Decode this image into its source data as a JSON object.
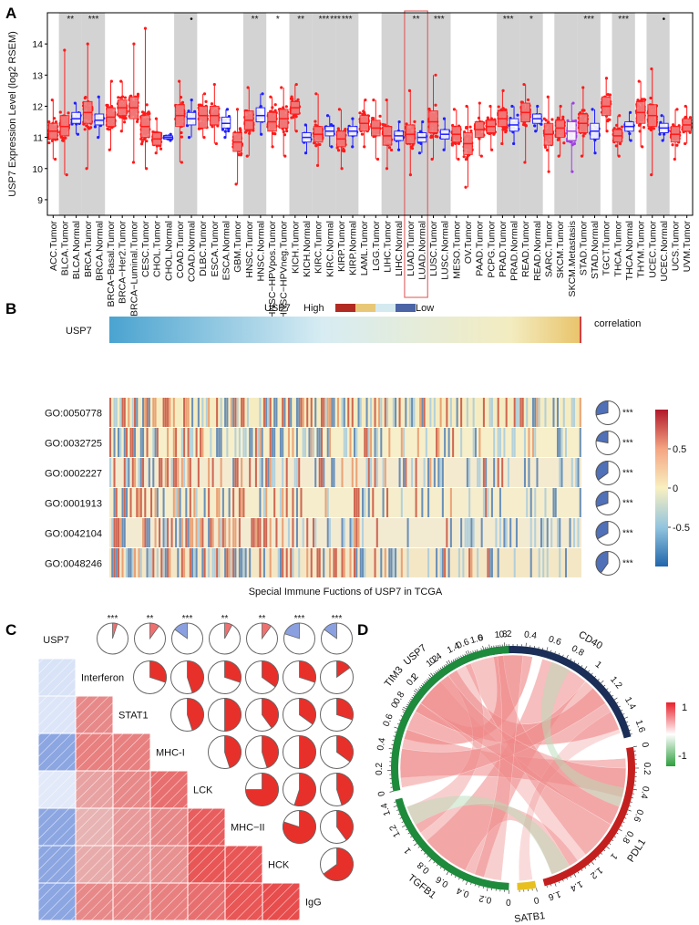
{
  "panel_labels": {
    "a": "A",
    "b": "B",
    "c": "C",
    "d": "D"
  },
  "colors": {
    "tumor": "#ff1a1a",
    "tumor_box": "#f08080",
    "normal": "#1f1fff",
    "metastasis": "#a040e0",
    "high_bar": [
      "#b22b22",
      "#e8c877",
      "#d5eaf0",
      "#4b64a6"
    ],
    "grey_band": "#d3d3d3"
  },
  "chart_data": [
    {
      "type": "box",
      "panel": "A",
      "ylabel": "USP7 Expression Level (log2 RSEM)",
      "ylim": [
        8.5,
        15
      ],
      "yticks": [
        9,
        10,
        11,
        12,
        13,
        14
      ],
      "categories": [
        {
          "label": "ACC.Tumor",
          "median": 11.2,
          "q1": 10.95,
          "q3": 11.45,
          "lo": 10.3,
          "hi": 12.2,
          "group": "tumor",
          "sig": ""
        },
        {
          "label": "BLCA.Tumor",
          "median": 11.35,
          "q1": 11.05,
          "q3": 11.7,
          "lo": 9.8,
          "hi": 13.8,
          "group": "tumor",
          "sig": "**"
        },
        {
          "label": "BLCA.Normal",
          "median": 11.6,
          "q1": 11.45,
          "q3": 11.8,
          "lo": 11.1,
          "hi": 12.1,
          "group": "normal",
          "sig": ""
        },
        {
          "label": "BRCA.Tumor",
          "median": 11.8,
          "q1": 11.45,
          "q3": 12.15,
          "lo": 10.0,
          "hi": 14.0,
          "group": "tumor",
          "sig": "***"
        },
        {
          "label": "BRCA.Normal",
          "median": 11.55,
          "q1": 11.4,
          "q3": 11.75,
          "lo": 11.0,
          "hi": 12.3,
          "group": "normal",
          "sig": ""
        },
        {
          "label": "BRCA−Basal.Tumor",
          "median": 11.65,
          "q1": 11.35,
          "q3": 11.95,
          "lo": 10.6,
          "hi": 12.8,
          "group": "tumor",
          "sig": ""
        },
        {
          "label": "BRCA−Her2.Tumor",
          "median": 11.95,
          "q1": 11.7,
          "q3": 12.2,
          "lo": 11.2,
          "hi": 12.8,
          "group": "tumor",
          "sig": ""
        },
        {
          "label": "BRCA−Luminal.Tumor",
          "median": 11.95,
          "q1": 11.6,
          "q3": 12.3,
          "lo": 10.2,
          "hi": 14.0,
          "group": "tumor",
          "sig": ""
        },
        {
          "label": "CESC.Tumor",
          "median": 11.35,
          "q1": 11.0,
          "q3": 11.7,
          "lo": 10.0,
          "hi": 14.5,
          "group": "tumor",
          "sig": ""
        },
        {
          "label": "CHOL.Tumor",
          "median": 10.95,
          "q1": 10.75,
          "q3": 11.15,
          "lo": 10.5,
          "hi": 11.6,
          "group": "tumor",
          "sig": ""
        },
        {
          "label": "CHOL.Normal",
          "median": 11.0,
          "q1": 10.95,
          "q3": 11.05,
          "lo": 10.9,
          "hi": 11.1,
          "group": "normal",
          "sig": ""
        },
        {
          "label": "COAD.Tumor",
          "median": 11.7,
          "q1": 11.35,
          "q3": 12.05,
          "lo": 10.2,
          "hi": 12.8,
          "group": "tumor",
          "sig": ""
        },
        {
          "label": "COAD.Normal",
          "median": 11.6,
          "q1": 11.4,
          "q3": 11.8,
          "lo": 11.0,
          "hi": 12.2,
          "group": "normal",
          "sig": "•"
        },
        {
          "label": "DLBC.Tumor",
          "median": 11.7,
          "q1": 11.3,
          "q3": 12.0,
          "lo": 11.0,
          "hi": 12.4,
          "group": "tumor",
          "sig": ""
        },
        {
          "label": "ESCA.Tumor",
          "median": 11.7,
          "q1": 11.4,
          "q3": 12.0,
          "lo": 10.8,
          "hi": 12.7,
          "group": "tumor",
          "sig": ""
        },
        {
          "label": "ESCA.Normal",
          "median": 11.45,
          "q1": 11.3,
          "q3": 11.65,
          "lo": 11.0,
          "hi": 11.9,
          "group": "normal",
          "sig": ""
        },
        {
          "label": "GBM.Tumor",
          "median": 10.85,
          "q1": 10.55,
          "q3": 11.15,
          "lo": 9.5,
          "hi": 11.9,
          "group": "tumor",
          "sig": ""
        },
        {
          "label": "HNSC.Tumor",
          "median": 11.55,
          "q1": 11.25,
          "q3": 11.85,
          "lo": 10.4,
          "hi": 12.6,
          "group": "tumor",
          "sig": "**"
        },
        {
          "label": "HNSC.Normal",
          "median": 11.7,
          "q1": 11.5,
          "q3": 11.95,
          "lo": 11.1,
          "hi": 12.4,
          "group": "normal",
          "sig": ""
        },
        {
          "label": "HNSC−HPVpos.Tumor",
          "median": 11.5,
          "q1": 11.2,
          "q3": 11.8,
          "lo": 10.7,
          "hi": 12.3,
          "group": "tumor",
          "sig": "*"
        },
        {
          "label": "HNSC−HPVneg.Tumor",
          "median": 11.6,
          "q1": 11.3,
          "q3": 11.9,
          "lo": 10.4,
          "hi": 12.6,
          "group": "tumor",
          "sig": ""
        },
        {
          "label": "KICH.Tumor",
          "median": 11.95,
          "q1": 11.75,
          "q3": 12.15,
          "lo": 11.2,
          "hi": 12.7,
          "group": "tumor",
          "sig": "**"
        },
        {
          "label": "KICH.Normal",
          "median": 11.0,
          "q1": 10.85,
          "q3": 11.15,
          "lo": 10.5,
          "hi": 11.4,
          "group": "normal",
          "sig": ""
        },
        {
          "label": "KIRC.Tumor",
          "median": 11.1,
          "q1": 10.85,
          "q3": 11.35,
          "lo": 10.1,
          "hi": 12.4,
          "group": "tumor",
          "sig": "***"
        },
        {
          "label": "KIRC.Normal",
          "median": 11.2,
          "q1": 11.05,
          "q3": 11.35,
          "lo": 10.7,
          "hi": 11.7,
          "group": "normal",
          "sig": "***"
        },
        {
          "label": "KIRP.Tumor",
          "median": 10.95,
          "q1": 10.7,
          "q3": 11.2,
          "lo": 10.0,
          "hi": 11.9,
          "group": "tumor",
          "sig": "***"
        },
        {
          "label": "KIRP.Normal",
          "median": 11.2,
          "q1": 11.05,
          "q3": 11.35,
          "lo": 10.7,
          "hi": 11.6,
          "group": "normal",
          "sig": ""
        },
        {
          "label": "LAML.Tumor",
          "median": 11.45,
          "q1": 11.2,
          "q3": 11.7,
          "lo": 10.7,
          "hi": 12.2,
          "group": "tumor",
          "sig": ""
        },
        {
          "label": "LGG.Tumor",
          "median": 11.3,
          "q1": 11.05,
          "q3": 11.55,
          "lo": 10.3,
          "hi": 12.2,
          "group": "tumor",
          "sig": ""
        },
        {
          "label": "LIHC.Tumor",
          "median": 11.05,
          "q1": 10.75,
          "q3": 11.35,
          "lo": 10.0,
          "hi": 12.2,
          "group": "tumor",
          "sig": ""
        },
        {
          "label": "LIHC.Normal",
          "median": 11.05,
          "q1": 10.9,
          "q3": 11.2,
          "lo": 10.6,
          "hi": 11.5,
          "group": "normal",
          "sig": ""
        },
        {
          "label": "LUAD.Tumor",
          "median": 11.1,
          "q1": 10.8,
          "q3": 11.4,
          "lo": 9.8,
          "hi": 12.5,
          "group": "tumor",
          "sig": "**"
        },
        {
          "label": "LUAD.Normal",
          "median": 11.0,
          "q1": 10.85,
          "q3": 11.15,
          "lo": 10.5,
          "hi": 11.5,
          "group": "normal",
          "sig": ""
        },
        {
          "label": "LUSC.Tumor",
          "median": 11.5,
          "q1": 11.15,
          "q3": 11.85,
          "lo": 10.3,
          "hi": 13.0,
          "group": "tumor",
          "sig": "***"
        },
        {
          "label": "LUSC.Normal",
          "median": 11.1,
          "q1": 10.95,
          "q3": 11.25,
          "lo": 10.6,
          "hi": 11.6,
          "group": "normal",
          "sig": ""
        },
        {
          "label": "MESO.Tumor",
          "median": 11.1,
          "q1": 10.85,
          "q3": 11.35,
          "lo": 10.3,
          "hi": 11.9,
          "group": "tumor",
          "sig": ""
        },
        {
          "label": "OV.Tumor",
          "median": 10.8,
          "q1": 10.45,
          "q3": 11.15,
          "lo": 9.4,
          "hi": 12.0,
          "group": "tumor",
          "sig": ""
        },
        {
          "label": "PAAD.Tumor",
          "median": 11.25,
          "q1": 11.0,
          "q3": 11.5,
          "lo": 10.4,
          "hi": 12.1,
          "group": "tumor",
          "sig": ""
        },
        {
          "label": "PCPG.Tumor",
          "median": 11.35,
          "q1": 11.15,
          "q3": 11.55,
          "lo": 10.6,
          "hi": 12.0,
          "group": "tumor",
          "sig": ""
        },
        {
          "label": "PRAD.Tumor",
          "median": 11.6,
          "q1": 11.35,
          "q3": 11.85,
          "lo": 10.8,
          "hi": 12.5,
          "group": "tumor",
          "sig": "***"
        },
        {
          "label": "PRAD.Normal",
          "median": 11.4,
          "q1": 11.2,
          "q3": 11.6,
          "lo": 10.8,
          "hi": 12.0,
          "group": "normal",
          "sig": ""
        },
        {
          "label": "READ.Tumor",
          "median": 11.8,
          "q1": 11.5,
          "q3": 12.1,
          "lo": 10.2,
          "hi": 12.7,
          "group": "tumor",
          "sig": "*"
        },
        {
          "label": "READ.Normal",
          "median": 11.6,
          "q1": 11.45,
          "q3": 11.75,
          "lo": 11.2,
          "hi": 12.0,
          "group": "normal",
          "sig": ""
        },
        {
          "label": "SARC.Tumor",
          "median": 11.1,
          "q1": 10.75,
          "q3": 11.45,
          "lo": 9.9,
          "hi": 12.3,
          "group": "tumor",
          "sig": ""
        },
        {
          "label": "SKCM.Tumor",
          "median": 11.3,
          "q1": 11.0,
          "q3": 11.55,
          "lo": 10.4,
          "hi": 12.0,
          "group": "tumor",
          "sig": ""
        },
        {
          "label": "SKCM.Metastasis",
          "median": 11.2,
          "q1": 10.9,
          "q3": 11.5,
          "lo": 9.9,
          "hi": 12.1,
          "group": "metastasis",
          "sig": ""
        },
        {
          "label": "STAD.Tumor",
          "median": 11.45,
          "q1": 11.15,
          "q3": 11.75,
          "lo": 10.4,
          "hi": 12.6,
          "group": "tumor",
          "sig": "***"
        },
        {
          "label": "STAD.Normal",
          "median": 11.2,
          "q1": 10.95,
          "q3": 11.45,
          "lo": 10.5,
          "hi": 11.9,
          "group": "normal",
          "sig": ""
        },
        {
          "label": "TGCT.Tumor",
          "median": 12.0,
          "q1": 11.7,
          "q3": 12.3,
          "lo": 11.2,
          "hi": 12.9,
          "group": "tumor",
          "sig": ""
        },
        {
          "label": "THCA.Tumor",
          "median": 11.05,
          "q1": 10.85,
          "q3": 11.25,
          "lo": 10.4,
          "hi": 11.7,
          "group": "tumor",
          "sig": "***"
        },
        {
          "label": "THCA.Normal",
          "median": 11.35,
          "q1": 11.2,
          "q3": 11.5,
          "lo": 10.9,
          "hi": 11.8,
          "group": "normal",
          "sig": ""
        },
        {
          "label": "THYM.Tumor",
          "median": 11.8,
          "q1": 11.45,
          "q3": 12.15,
          "lo": 10.7,
          "hi": 12.8,
          "group": "tumor",
          "sig": ""
        },
        {
          "label": "UCEC.Tumor",
          "median": 11.7,
          "q1": 11.35,
          "q3": 12.05,
          "lo": 9.8,
          "hi": 13.2,
          "group": "tumor",
          "sig": ""
        },
        {
          "label": "UCEC.Normal",
          "median": 11.3,
          "q1": 11.15,
          "q3": 11.45,
          "lo": 10.9,
          "hi": 11.7,
          "group": "normal",
          "sig": "•"
        },
        {
          "label": "UCS.Tumor",
          "median": 11.1,
          "q1": 10.85,
          "q3": 11.35,
          "lo": 10.3,
          "hi": 11.9,
          "group": "tumor",
          "sig": ""
        },
        {
          "label": "UVM.Tumor",
          "median": 11.4,
          "q1": 11.2,
          "q3": 11.6,
          "lo": 10.8,
          "hi": 12.0,
          "group": "tumor",
          "sig": ""
        }
      ],
      "grey_bands": [
        [
          1,
          2
        ],
        [
          3,
          4
        ],
        [
          11,
          12
        ],
        [
          17,
          18
        ],
        [
          21,
          22
        ],
        [
          23,
          24
        ],
        [
          25,
          26
        ],
        [
          29,
          30
        ],
        [
          31,
          32
        ],
        [
          33,
          34
        ],
        [
          39,
          40
        ],
        [
          41,
          42
        ],
        [
          44,
          45
        ],
        [
          46,
          47
        ],
        [
          49,
          50
        ],
        [
          52,
          53
        ]
      ],
      "highlight": [
        31,
        32
      ]
    },
    {
      "type": "heatmap",
      "panel": "B",
      "header_label": "USP7",
      "legend_high": "High",
      "legend_low": "Low",
      "row_label_top": "USP7",
      "correlation_label": "correlation",
      "rows": [
        "GO:0050778",
        "GO:0032725",
        "GO:0002227",
        "GO:0001913",
        "GO:0042104",
        "GO:0048246"
      ],
      "row_correlations": [
        0.28,
        0.22,
        0.35,
        0.3,
        0.33,
        0.4
      ],
      "row_significance": [
        "***",
        "***",
        "***",
        "***",
        "***",
        "***"
      ],
      "colorbar_ticks": [
        0.5,
        0,
        -0.5
      ],
      "colorbar_tick_labels": [
        "0.5",
        "0",
        "-0.5"
      ],
      "title": "Special Immune Fuctions of USP7 in TCGA"
    },
    {
      "type": "correlation_matrix",
      "panel": "C",
      "variables": [
        "USP7",
        "Interferon",
        "STAT1",
        "MHC-I",
        "LCK",
        "MHC−II",
        "HCK",
        "IgG"
      ],
      "usp7_significance": [
        "***",
        "**",
        "***",
        "**",
        "**",
        "***",
        "***"
      ],
      "usp7_correlations": [
        0.05,
        0.1,
        -0.15,
        0.08,
        0.1,
        -0.2,
        -0.15
      ],
      "upper_correlations": [
        [
          0.3,
          0.45,
          0.3,
          0.35,
          0.3,
          0.15
        ],
        [
          0.45,
          0.5,
          0.4,
          0.35,
          0.3
        ],
        [
          0.45,
          0.45,
          0.5,
          0.35
        ],
        [
          0.75,
          0.55,
          0.45
        ],
        [
          0.8,
          0.4
        ],
        [
          0.65
        ]
      ]
    },
    {
      "type": "chord",
      "panel": "D",
      "sectors": [
        {
          "name": "USP7",
          "color": "#47b8d0",
          "ticks": [
            "0",
            "0.2",
            "0.4",
            "0.6"
          ]
        },
        {
          "name": "CD40",
          "color": "#1b2e57",
          "ticks": [
            "0",
            "0.2",
            "0.4",
            "0.6",
            "0.8",
            "1",
            "1.2",
            "1.4",
            "1.6"
          ]
        },
        {
          "name": "PDL1",
          "color": "#c41f1f",
          "ticks": [
            "0",
            "0.2",
            "0.4",
            "0.6",
            "0.8",
            "1",
            "1.2",
            "1.4",
            "1.6"
          ]
        },
        {
          "name": "SATB1",
          "color": "#e7c020",
          "ticks": [
            "0"
          ]
        },
        {
          "name": "TGFB1",
          "color": "#1e8a3c",
          "ticks": [
            "0",
            "0.2",
            "0.4",
            "0.6",
            "0.8",
            "1",
            "1.2",
            "1.4"
          ]
        },
        {
          "name": "TIM3",
          "color": "#1e8a3c",
          "ticks": [
            "0",
            "0.2",
            "0.4",
            "0.6",
            "0.8",
            "1",
            "1.2",
            "1.4",
            "1.6",
            "1.8"
          ]
        }
      ],
      "legend": {
        "max_label": "1",
        "min_label": "-1"
      }
    }
  ]
}
